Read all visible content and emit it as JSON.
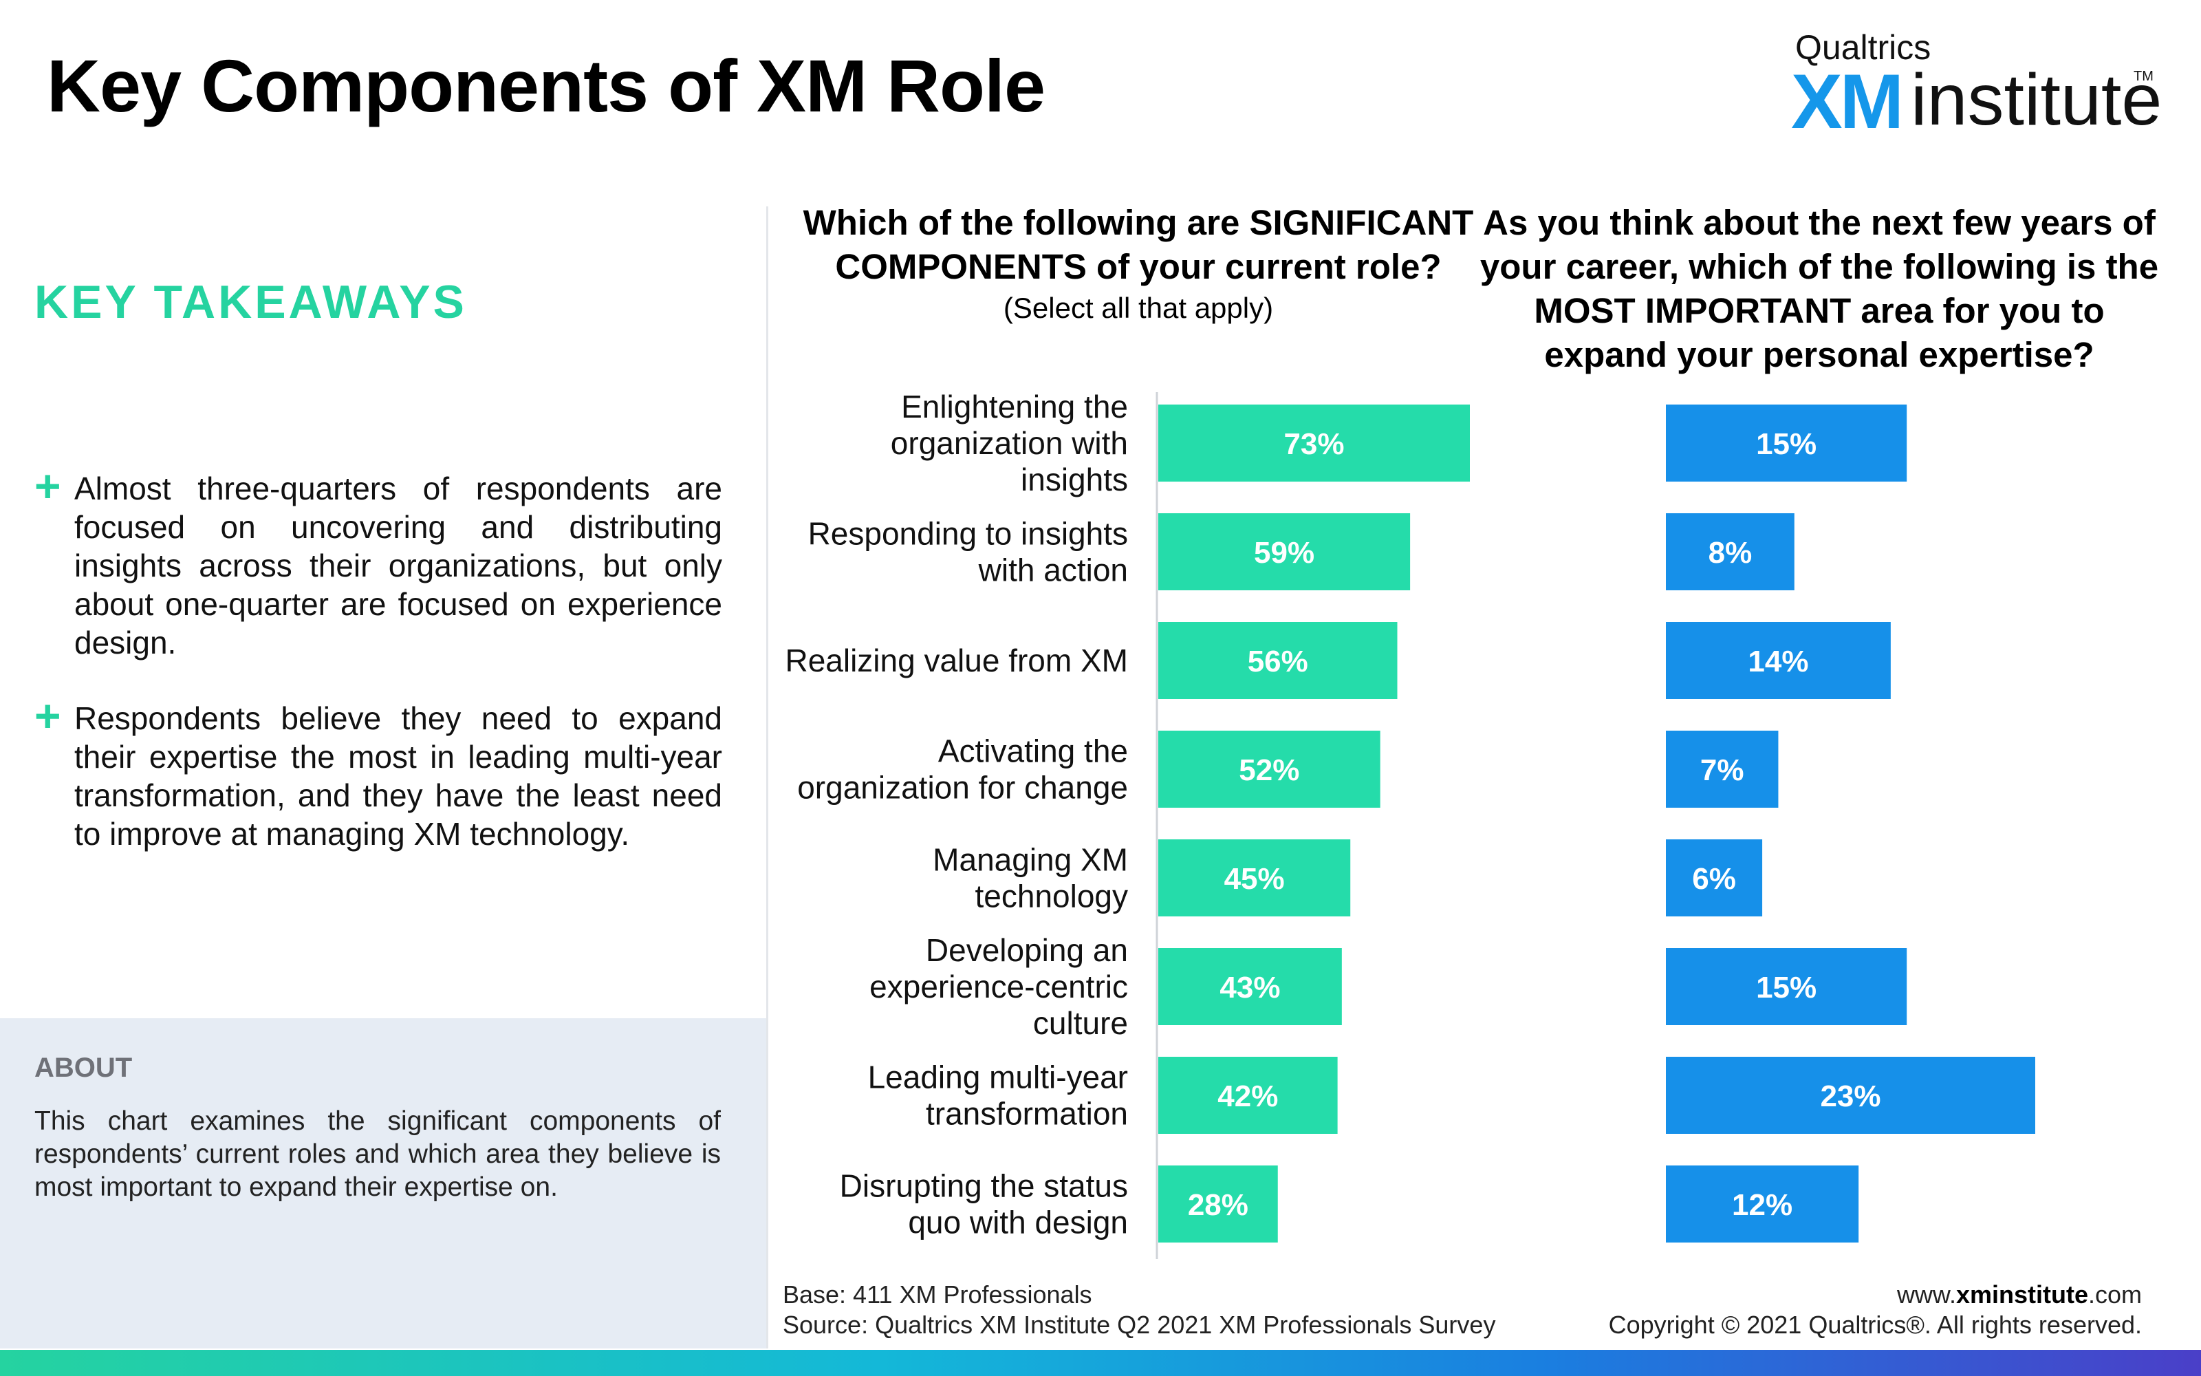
{
  "header": {
    "title": "Key Components of XM Role",
    "logo_brand": "Qualtrics",
    "logo_xm": "XM",
    "logo_institute": "institute",
    "logo_tm": "TM"
  },
  "takeaways": {
    "heading": "KEY TAKEAWAYS",
    "bullet_symbol": "+",
    "items": [
      "Almost three-quarters of respondents are focused on uncovering and distributing insights across their organizations, but only about one-quarter are focused on experience design.",
      "Respondents believe they need to expand their expertise the most in leading multi-year transformation, and they have the least need to improve at managing XM technology."
    ]
  },
  "about": {
    "heading": "ABOUT",
    "text": "This chart examines the significant components of respondents’ current roles and which area they believe is most important to expand their expertise on."
  },
  "questions": {
    "left": "Which of the following are SIGNIFICANT COMPONENTS of your current role?",
    "left_sub": "(Select all that apply)",
    "right": "As you think about the next few years of your career, which of the following is the MOST IMPORTANT area for you to expand your personal expertise?"
  },
  "chart_data": {
    "type": "bar",
    "orientation": "horizontal",
    "categories": [
      "Enlightening the organization with insights",
      "Responding to insights with action",
      "Realizing value from XM",
      "Activating the organization for change",
      "Managing XM technology",
      "Developing an experience-centric culture",
      "Leading multi-year transformation",
      "Disrupting the status quo with design"
    ],
    "series": [
      {
        "values": [
          73,
          59,
          56,
          52,
          45,
          43,
          42,
          28
        ],
        "labels": [
          "73%",
          "59%",
          "56%",
          "52%",
          "45%",
          "43%",
          "42%",
          "28%"
        ],
        "color": "#25dcaa"
      },
      {
        "values": [
          15,
          8,
          14,
          7,
          6,
          15,
          23,
          12
        ],
        "labels": [
          "15%",
          "8%",
          "14%",
          "7%",
          "6%",
          "15%",
          "23%",
          "12%"
        ],
        "color": "#1690e9"
      }
    ],
    "title": "",
    "xlabel": "",
    "ylabel": "",
    "unit": "%"
  },
  "footer": {
    "base": "Base: 411 XM Professionals",
    "source": "Source: Qualtrics XM Institute Q2 2021 XM Professionals Survey",
    "url_prefix": "www.",
    "url_bold": "xminstitute",
    "url_suffix": ".com",
    "copyright": "Copyright © 2021 Qualtrics®. All rights reserved."
  }
}
